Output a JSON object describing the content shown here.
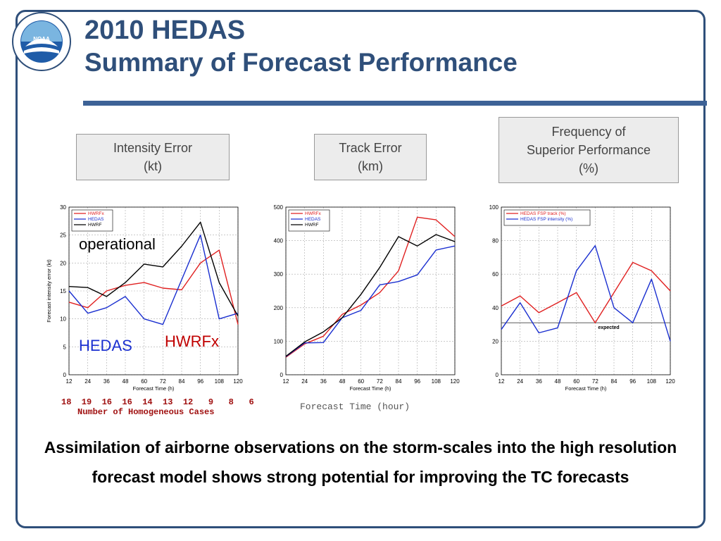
{
  "title": {
    "line1": "2010 HEDAS",
    "line2": "Summary of Forecast Performance"
  },
  "headers": {
    "intensity": [
      "Intensity Error",
      "(kt)"
    ],
    "track": [
      "Track Error",
      "(km)"
    ],
    "frequency": [
      "Frequency of",
      "Superior Performance",
      "(%)"
    ]
  },
  "annotations": {
    "operational": "operational",
    "hedas": "HEDAS",
    "hwrfx": "HWRFx",
    "cases_numbers": "18  19  16  16  14  13  12   9   8   6",
    "cases_label": "Number of Homogeneous Cases",
    "forecast_time": "Forecast Time (hour)"
  },
  "caption": "Assimilation of airborne observations on the storm-scales into the high resolution forecast model shows strong potential for improving the TC forecasts",
  "colors": {
    "hwrfx": "#e02020",
    "hedas": "#1a2fd0",
    "hwrf": "#000000",
    "accent": "#2f4f7a"
  },
  "chart_data": [
    {
      "type": "line",
      "x": [
        12,
        24,
        36,
        48,
        60,
        72,
        84,
        96,
        108,
        120
      ],
      "xlabel": "Forecast Time (h)",
      "ylabel": "Forecast intensity error (kt)",
      "xlim": [
        12,
        120
      ],
      "ylim": [
        0,
        30
      ],
      "xticks": [
        12,
        24,
        36,
        48,
        60,
        72,
        84,
        96,
        108,
        120
      ],
      "yticks": [
        0,
        5,
        10,
        15,
        20,
        25,
        30
      ],
      "series": [
        {
          "name": "HWRFx",
          "color": "#e02020",
          "values": [
            13,
            12,
            15,
            16,
            16.5,
            15.5,
            15.2,
            20,
            22.3,
            9
          ]
        },
        {
          "name": "HEDAS",
          "color": "#1a2fd0",
          "values": [
            15,
            11,
            12,
            14,
            10,
            9,
            17,
            25,
            10,
            11
          ]
        },
        {
          "name": "HWRF",
          "color": "#000000",
          "values": [
            15.8,
            15.6,
            14,
            16.5,
            19.8,
            19.3,
            23,
            27.3,
            16.5,
            10.5
          ]
        }
      ]
    },
    {
      "type": "line",
      "x": [
        12,
        24,
        36,
        48,
        60,
        72,
        84,
        96,
        108,
        120
      ],
      "xlabel": "Forecast Time (h)",
      "xlim": [
        12,
        120
      ],
      "ylim": [
        0,
        500
      ],
      "xticks": [
        12,
        24,
        36,
        48,
        60,
        72,
        84,
        96,
        108,
        120
      ],
      "yticks": [
        0,
        100,
        200,
        300,
        400,
        500
      ],
      "series": [
        {
          "name": "HWRFx",
          "color": "#e02020",
          "values": [
            52,
            92,
            115,
            180,
            208,
            245,
            310,
            470,
            462,
            412
          ]
        },
        {
          "name": "HEDAS",
          "color": "#1a2fd0",
          "values": [
            54,
            95,
            96,
            170,
            192,
            268,
            278,
            298,
            372,
            384
          ]
        },
        {
          "name": "HWRF",
          "color": "#000000",
          "values": [
            55,
            98,
            128,
            170,
            240,
            320,
            412,
            384,
            418,
            397
          ]
        }
      ]
    },
    {
      "type": "line",
      "x": [
        12,
        24,
        36,
        48,
        60,
        72,
        84,
        96,
        108,
        120
      ],
      "xlabel": "Forecast Time (h)",
      "xlim": [
        12,
        120
      ],
      "ylim": [
        0,
        100
      ],
      "xticks": [
        12,
        24,
        36,
        48,
        60,
        72,
        84,
        96,
        108,
        120
      ],
      "yticks": [
        0,
        20,
        40,
        60,
        80,
        100
      ],
      "series": [
        {
          "name": "HEDAS FSP track (%)",
          "color": "#e02020",
          "values": [
            41,
            47,
            37,
            43,
            49,
            31,
            49,
            67,
            62,
            50
          ]
        },
        {
          "name": "HEDAS FSP intensity (%)",
          "color": "#1a2fd0",
          "values": [
            27,
            43,
            25,
            28,
            62,
            77,
            40,
            31,
            57,
            20
          ]
        }
      ],
      "reference": {
        "label": "expected",
        "value": 31
      }
    }
  ]
}
